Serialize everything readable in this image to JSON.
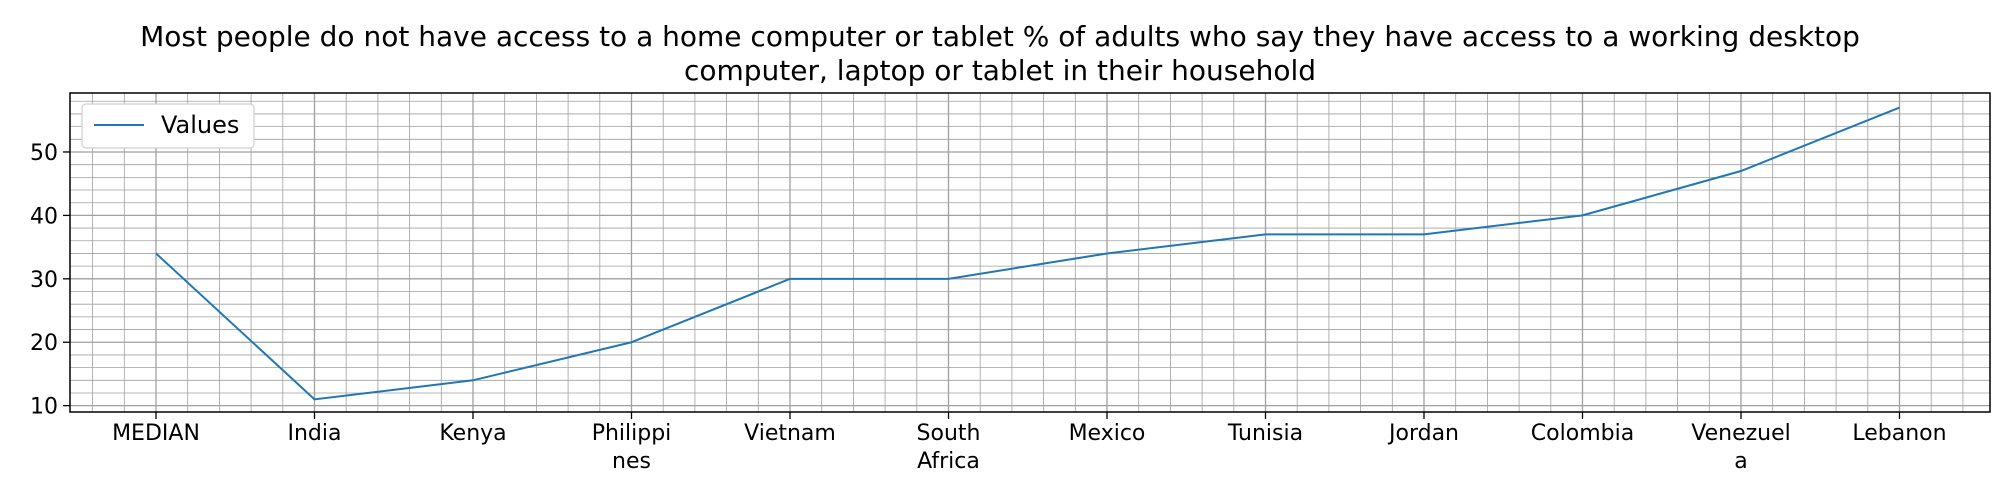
{
  "chart_data": {
    "type": "line",
    "title": "Most people do not have access to a home computer or tablet % of adults who say they have access to a working desktop\ncomputer, laptop or tablet in their household",
    "categories": [
      "MEDIAN",
      "India",
      "Kenya",
      "Philippi\nnes",
      "Vietnam",
      "South\nAfrica",
      "Mexico",
      "Tunisia",
      "Jordan",
      "Colombia",
      "Venezuel\na",
      "Lebanon"
    ],
    "series": [
      {
        "name": "Values",
        "values": [
          34,
          11,
          14,
          20,
          30,
          30,
          34,
          37,
          37,
          40,
          47,
          57
        ]
      }
    ],
    "yticks": [
      10,
      20,
      30,
      40,
      50
    ],
    "ylim": [
      9,
      59.3
    ],
    "grid": true,
    "minor_grid": true,
    "legend": "top-left",
    "colors": {
      "line": "#1f77b4",
      "grid": "#a0a0a0"
    }
  }
}
